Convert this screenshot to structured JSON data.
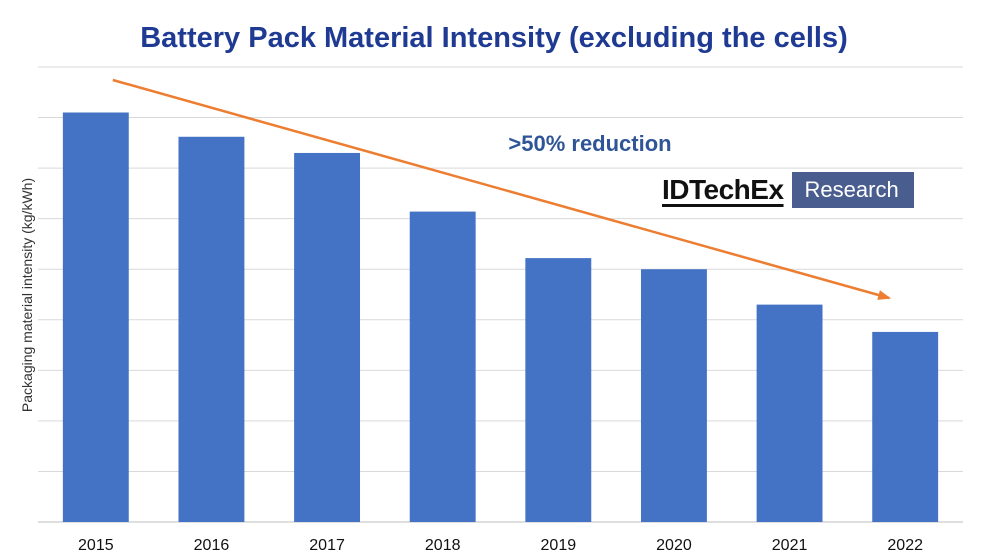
{
  "chart_data": {
    "type": "bar",
    "title": "Battery Pack Material Intensity (excluding the cells)",
    "xlabel": "",
    "ylabel": "Packaging material intensity (kg/kWh)",
    "categories": [
      "2015",
      "2016",
      "2017",
      "2018",
      "2019",
      "2020",
      "2021",
      "2022"
    ],
    "values": [
      8.1,
      7.62,
      7.3,
      6.14,
      5.22,
      5.0,
      4.3,
      3.76
    ],
    "ylim": [
      0,
      9
    ],
    "y_tick_labels_shown": false,
    "grid": true,
    "bar_color": "#4472c4",
    "annotation": ">50% reduction",
    "trend_arrow": {
      "color": "#ed7d31",
      "from_category": "2015",
      "to_category": "2022",
      "direction": "downward"
    }
  },
  "logo": {
    "brand": "IDTechEx",
    "sub": "Research"
  },
  "colors": {
    "title": "#1f3a93",
    "annotation": "#2f5597",
    "grid": "#d9d9d9",
    "axis": "#bfbfbf"
  }
}
